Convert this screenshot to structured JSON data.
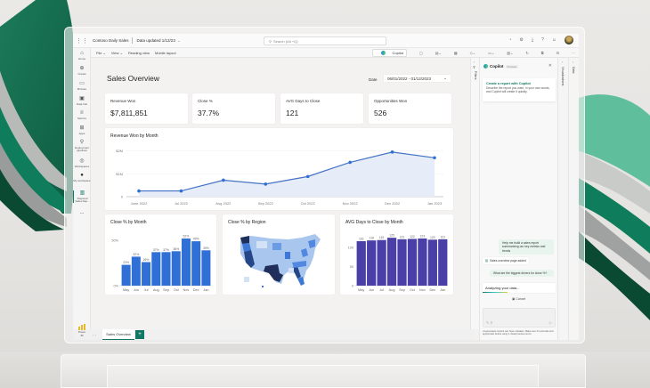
{
  "app": {
    "title": "Contoso Daily Sales",
    "data_updated": "Data updated 1/12/23",
    "search_placeholder": "Search (Alt +Q)"
  },
  "ribbon": {
    "items": [
      "File ⌄",
      "View ⌄",
      "Reading view",
      "Mobile layout"
    ],
    "copilot_label": "Copilot"
  },
  "nav": {
    "items": [
      {
        "label": "Home",
        "icon": "⌂"
      },
      {
        "label": "Create",
        "icon": "⊕"
      },
      {
        "label": "Browse",
        "icon": "▭"
      },
      {
        "label": "Data hub",
        "icon": "▣"
      },
      {
        "label": "Metrics",
        "icon": "♕"
      },
      {
        "label": "Apps",
        "icon": "⊞"
      },
      {
        "label": "Deployment pipelines",
        "icon": "⚲"
      },
      {
        "label": "Workspaces",
        "icon": "◎"
      },
      {
        "label": "My workspace",
        "icon": "●"
      },
      {
        "label": "Regional Sales Rep...",
        "icon": "▥"
      },
      {
        "label": "...",
        "icon": ""
      }
    ],
    "powerbi_label": "Power BI"
  },
  "report": {
    "title": "Sales Overview",
    "date_label": "Date",
    "date_range": "06/01/2022 - 01/12/2023",
    "kpis": [
      {
        "label": "Revenue Won",
        "value": "$7,811,851"
      },
      {
        "label": "Close %",
        "value": "37.7%"
      },
      {
        "label": "AVG Days to Close",
        "value": "121"
      },
      {
        "label": "Opportunities Won",
        "value": "526"
      }
    ],
    "revenue_chart_title": "Revenue Won by Month",
    "close_chart_title": "Close % by Month",
    "region_chart_title": "Close % by Region",
    "days_chart_title": "AVG Days to Close by Month"
  },
  "tabs": {
    "active": "Sales Overview",
    "add": "+"
  },
  "side_rails": {
    "filters": "Filters",
    "visualizations": "Visualizations",
    "data": "Data"
  },
  "copilot": {
    "title": "Copilot",
    "badge": "Preview",
    "card_title": "Create a report with Copilot",
    "card_body": "Describe the report you want, in your own words, and Copilot will create it quickly.",
    "messages": [
      {
        "role": "user",
        "text": "Help me build a sales report summarizing our key metrics and trends"
      },
      {
        "role": "system",
        "text": "Sales overview page added"
      },
      {
        "role": "user",
        "text": "What are the biggest drivers for close %?"
      }
    ],
    "status": "Analyzing your data...",
    "cancel_label": "Cancel",
    "disclaimer": "AI-generated content can have mistakes. Make sure it's accurate and appropriate before using it. Read preview terms"
  },
  "colors": {
    "accent": "#117865",
    "line": "#4472c4",
    "bar_blue": "#2f6fd6",
    "bar_purple": "#4a3fa8"
  },
  "chart_data": [
    {
      "type": "area",
      "title": "Revenue Won by Month",
      "categories": [
        "June 2022",
        "Jul 2022",
        "Aug 2022",
        "Sep 2022",
        "Oct 2022",
        "Nov 2022",
        "Dec 2022",
        "Jan 2023"
      ],
      "values": [
        250000,
        250000,
        720000,
        550000,
        880000,
        1500000,
        1950000,
        1700000
      ],
      "yticks": [
        "0",
        "$1M",
        "$2M"
      ],
      "ylim": [
        0,
        2100000
      ]
    },
    {
      "type": "bar",
      "title": "Close % by Month",
      "categories": [
        "May",
        "Jun",
        "Jul",
        "Aug",
        "Sep",
        "Oct",
        "Nov",
        "Dec",
        "Jan"
      ],
      "values": [
        23,
        32,
        26,
        37,
        37,
        38,
        52,
        49,
        39
      ],
      "labels": [
        "23%",
        "32%",
        "26%",
        "37%",
        "37%",
        "38%",
        "52%",
        "49%",
        "39%"
      ],
      "yticks": [
        "0%",
        "50%"
      ],
      "ylim": [
        0,
        55
      ]
    },
    {
      "type": "heatmap",
      "title": "Close % by Region",
      "note": "US choropleth map, darker = higher close %"
    },
    {
      "type": "bar",
      "title": "AVG Days to Close by Month",
      "categories": [
        "May",
        "Jun",
        "Jul",
        "Aug",
        "Sep",
        "Oct",
        "Nov",
        "Dec",
        "Jan"
      ],
      "values": [
        116,
        118,
        119,
        125,
        121,
        122,
        123,
        120,
        121
      ],
      "labels": [
        "116",
        "118",
        "119",
        "125",
        "121",
        "122",
        "123",
        "120",
        "121"
      ],
      "yticks": [
        "0",
        "50",
        "100"
      ],
      "ylim": [
        0,
        130
      ]
    }
  ]
}
